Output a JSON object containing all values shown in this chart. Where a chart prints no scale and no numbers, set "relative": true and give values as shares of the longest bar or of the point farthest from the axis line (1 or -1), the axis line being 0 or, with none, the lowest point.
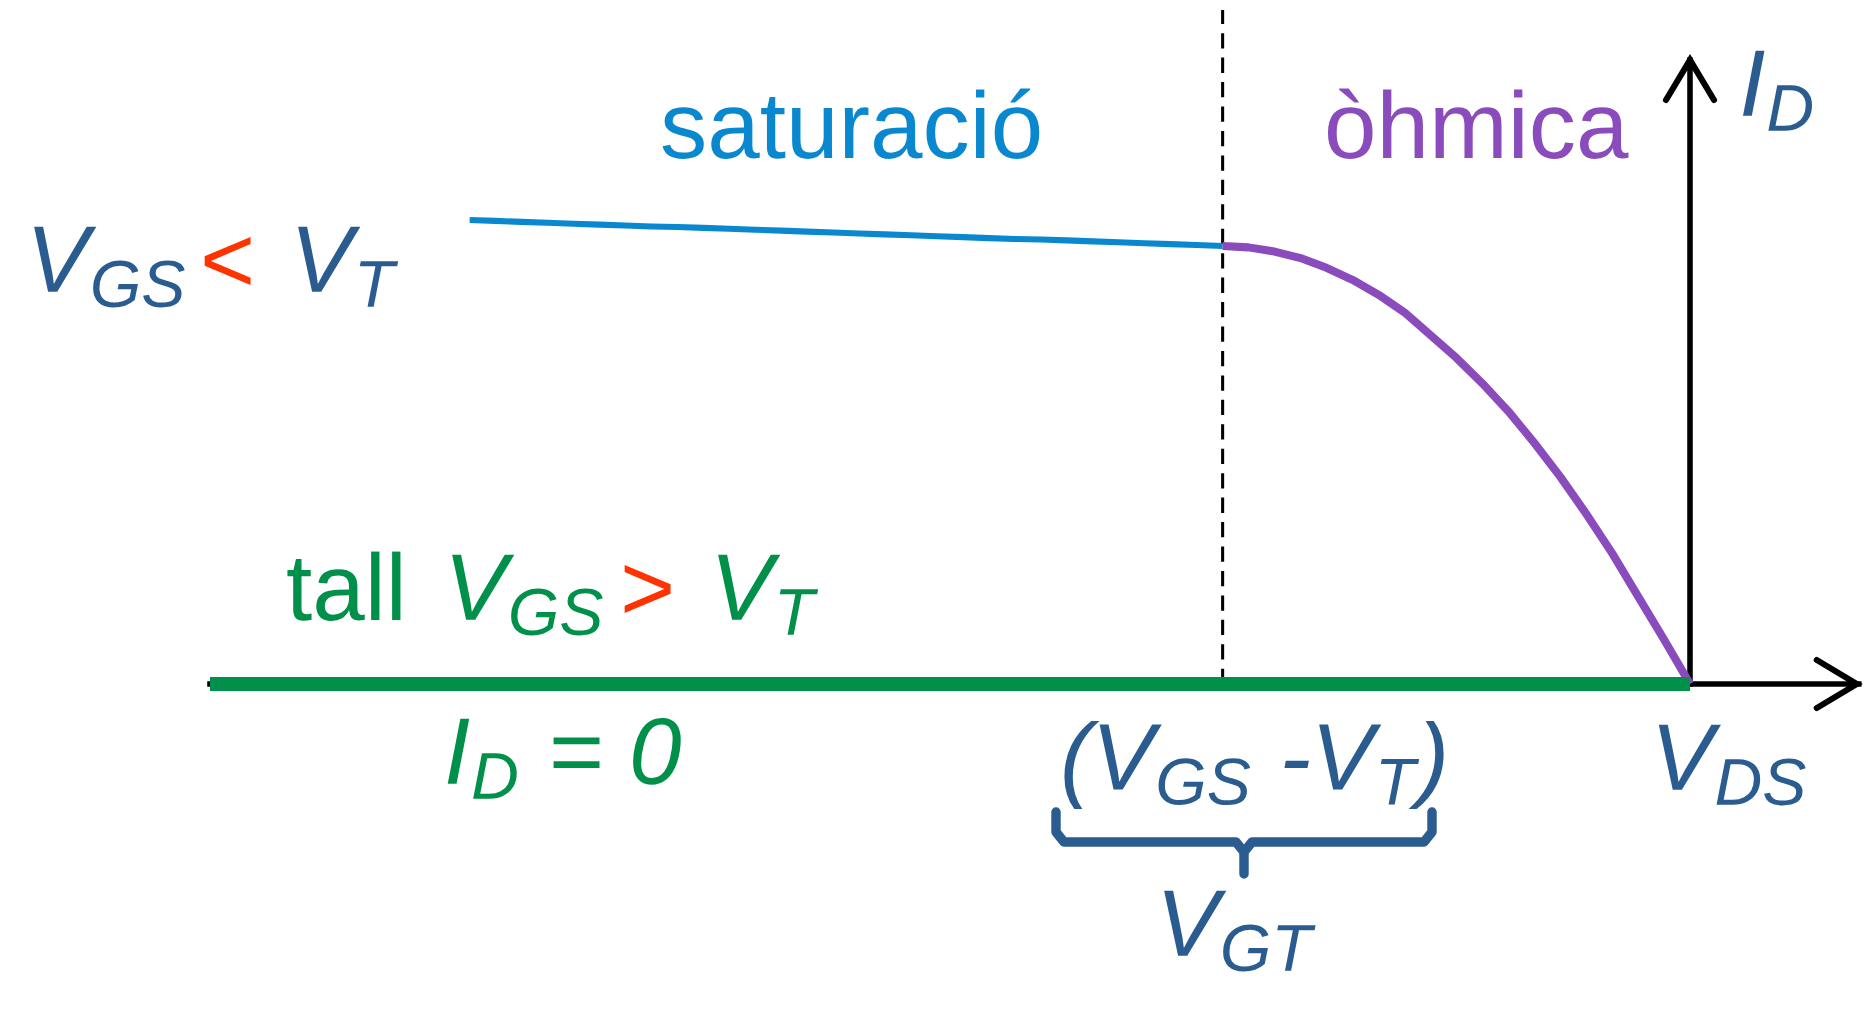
{
  "chart_data": {
    "type": "line",
    "relative": true,
    "categories": [
      null,
      null,
      null,
      null,
      null,
      null,
      null,
      null,
      null,
      null,
      null,
      null,
      null,
      null,
      null,
      null,
      null,
      null,
      null,
      null,
      null,
      null,
      null,
      null,
      null,
      null,
      null,
      null,
      null,
      null,
      null,
      null,
      null,
      null,
      null,
      null,
      null,
      null,
      null,
      null,
      null,
      null,
      null,
      null,
      null,
      null,
      null,
      null,
      null,
      null,
      null,
      null,
      null,
      null,
      null,
      null,
      null,
      null,
      null,
      null,
      null,
      null,
      null,
      null
    ],
    "xlabel": "V$_{DS}$",
    "ylabel": "I$_{D}$",
    "series": [
      {
        "name": "saturació",
        "color": "#0a88cf",
        "values": [
          null,
          null,
          null,
          null,
          null,
          null,
          null,
          null,
          null,
          null,
          1.0,
          0.998,
          0.996,
          0.994,
          0.992,
          0.99,
          0.988,
          0.986,
          0.985,
          0.983,
          0.981,
          0.979,
          0.977,
          0.975,
          0.973,
          0.971,
          0.969,
          0.967,
          0.965,
          0.963,
          0.961,
          0.959,
          0.958,
          0.956,
          0.954,
          0.952,
          0.95,
          0.948,
          0.946,
          0.944,
          null,
          null,
          null,
          null,
          null,
          null,
          null,
          null,
          null,
          null,
          null,
          null,
          null,
          null,
          null,
          null,
          null,
          null,
          null,
          null,
          null,
          null,
          null,
          null
        ]
      },
      {
        "name": "òhmica",
        "color": "#8a4cbc",
        "values": [
          null,
          null,
          null,
          null,
          null,
          null,
          null,
          null,
          null,
          null,
          null,
          null,
          null,
          null,
          null,
          null,
          null,
          null,
          null,
          null,
          null,
          null,
          null,
          null,
          null,
          null,
          null,
          null,
          null,
          null,
          null,
          null,
          null,
          null,
          null,
          null,
          null,
          null,
          null,
          0.944,
          0.941,
          0.932,
          0.918,
          0.897,
          0.871,
          0.839,
          0.801,
          0.752,
          0.703,
          0.648,
          0.588,
          0.52,
          0.447,
          0.367,
          0.282,
          0.189,
          0.096,
          0,
          null,
          null,
          null,
          null,
          null,
          null
        ]
      },
      {
        "name": "tall",
        "color": "#00904a",
        "values": [
          0,
          0,
          0,
          0,
          0,
          0,
          0,
          0,
          0,
          0,
          0,
          0,
          0,
          0,
          0,
          0,
          0,
          0,
          0,
          0,
          0,
          0,
          0,
          0,
          0,
          0,
          0,
          0,
          0,
          0,
          0,
          0,
          0,
          0,
          0,
          0,
          0,
          0,
          0,
          0,
          0,
          0,
          0,
          0,
          0,
          0,
          0,
          0,
          0,
          0,
          0,
          0,
          0,
          0,
          0,
          0,
          0,
          0,
          null,
          null,
          null,
          null,
          null,
          null
        ]
      }
    ],
    "annotations": [
      "V$_{GS}$",
      "<",
      "V$_{T}$",
      "V$_{GS}$",
      ">",
      "V$_{T}$",
      "I$_{D}$ = 0",
      "(V$_{GS}$ -V$_{T}$)",
      "V$_{GT}$"
    ]
  }
}
